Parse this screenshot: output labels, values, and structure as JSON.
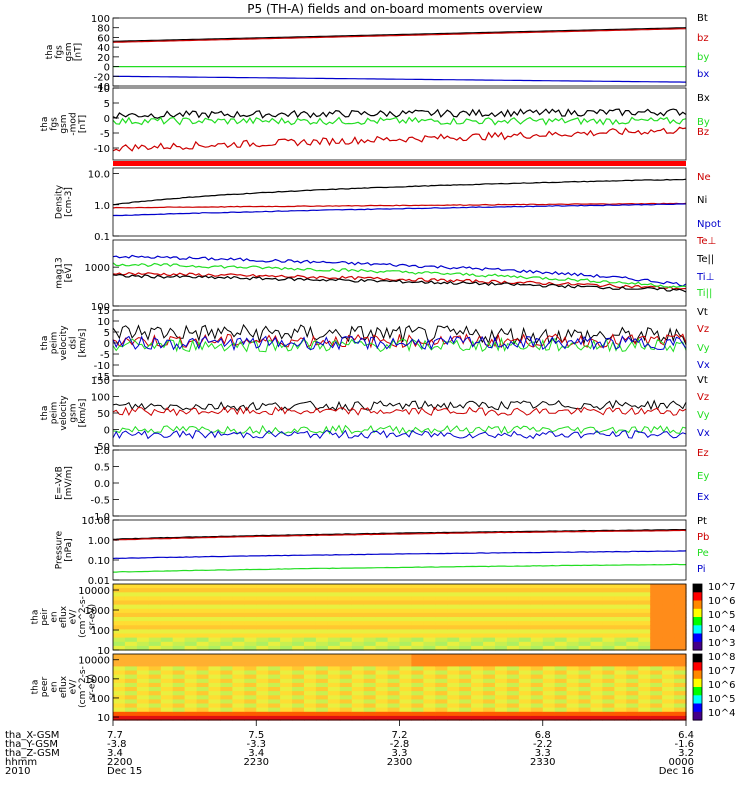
{
  "title": "P5 (TH-A) fields and on-board moments overview",
  "colors": {
    "black": "#000000",
    "red": "#cc0000",
    "green": "#22dd22",
    "blue": "#0000cc"
  },
  "chart_data": [
    {
      "type": "line",
      "ylabel": [
        "tha",
        "fgs",
        "gsm",
        "[nT]"
      ],
      "ylim": [
        -40,
        100
      ],
      "ticks": [
        "100",
        "80",
        "60",
        "40",
        "20",
        "0",
        "-20",
        "-40"
      ],
      "tickvals": [
        100,
        80,
        60,
        40,
        20,
        0,
        -20,
        -40
      ],
      "series": [
        {
          "name": "Bt",
          "color": "black",
          "values": [
            52,
            80
          ]
        },
        {
          "name": "bz",
          "color": "red",
          "values": [
            50,
            78
          ]
        },
        {
          "name": "by",
          "color": "green",
          "values": [
            0,
            0
          ]
        },
        {
          "name": "bx",
          "color": "blue",
          "values": [
            -20,
            -32
          ]
        }
      ]
    },
    {
      "type": "line",
      "ylabel": [
        "tha",
        "fgs",
        "gsm",
        "-mod",
        "[nT]"
      ],
      "ylim": [
        -14,
        10
      ],
      "ticks": [
        "10",
        "5",
        "0",
        "-5",
        "-10"
      ],
      "tickvals": [
        10,
        5,
        0,
        -5,
        -10
      ],
      "series": [
        {
          "name": "Bx",
          "color": "black",
          "values": [
            1,
            2
          ]
        },
        {
          "name": "By",
          "color": "green",
          "values": [
            -1,
            -1
          ]
        },
        {
          "name": "Bz",
          "color": "red",
          "values": [
            -10,
            -4
          ]
        }
      ]
    },
    {
      "type": "line",
      "ylabel": [
        "Density",
        "[cm-3]"
      ],
      "log": true,
      "ylim": [
        0.1,
        15
      ],
      "ticks": [
        "10.0",
        "1.0",
        "0.1"
      ],
      "tickvals": [
        10,
        1,
        0.1
      ],
      "series": [
        {
          "name": "Ne",
          "color": "red",
          "values": [
            0.8,
            1.1
          ]
        },
        {
          "name": "Ni",
          "color": "black",
          "values": [
            1.0,
            6.5
          ]
        },
        {
          "name": "Npot",
          "color": "blue",
          "values": [
            0.45,
            1.05
          ]
        }
      ]
    },
    {
      "type": "line",
      "ylabel": [
        "mag13",
        "[eV]"
      ],
      "log": true,
      "ylim": [
        100,
        5000
      ],
      "ticks": [
        "1000",
        "100"
      ],
      "tickvals": [
        1000,
        100
      ],
      "series": [
        {
          "name": "Te⊥",
          "color": "red",
          "values": [
            700,
            280
          ]
        },
        {
          "name": "Te||",
          "color": "black",
          "values": [
            600,
            250
          ]
        },
        {
          "name": "Ti⊥",
          "color": "blue",
          "values": [
            1900,
            350
          ]
        },
        {
          "name": "Ti||",
          "color": "green",
          "values": [
            1200,
            300
          ]
        }
      ]
    },
    {
      "type": "line",
      "ylabel": [
        "tha",
        "peim",
        "velocity",
        "dsl",
        "[km/s]"
      ],
      "ylim": [
        -15,
        15
      ],
      "ticks": [
        "15",
        "10",
        "5",
        "0",
        "-5",
        "-10",
        "-15"
      ],
      "tickvals": [
        15,
        10,
        5,
        0,
        -5,
        -10,
        -15
      ],
      "series": [
        {
          "name": "Vt",
          "color": "black",
          "values": [
            5,
            3
          ]
        },
        {
          "name": "Vz",
          "color": "red",
          "values": [
            1,
            1
          ]
        },
        {
          "name": "Vy",
          "color": "green",
          "values": [
            -1,
            -1
          ]
        },
        {
          "name": "Vx",
          "color": "blue",
          "values": [
            0,
            0
          ]
        }
      ]
    },
    {
      "type": "line",
      "ylabel": [
        "tha",
        "peim",
        "velocity",
        "gsm",
        "[km/s]"
      ],
      "ylim": [
        -50,
        150
      ],
      "ticks": [
        "150",
        "100",
        "50",
        "0",
        "-50"
      ],
      "tickvals": [
        150,
        100,
        50,
        0,
        -50
      ],
      "series": [
        {
          "name": "Vt",
          "color": "black",
          "values": [
            70,
            75
          ]
        },
        {
          "name": "Vz",
          "color": "red",
          "values": [
            55,
            55
          ]
        },
        {
          "name": "Vy",
          "color": "green",
          "values": [
            0,
            0
          ]
        },
        {
          "name": "Vx",
          "color": "blue",
          "values": [
            -15,
            -15
          ]
        }
      ]
    },
    {
      "type": "line",
      "ylabel": [
        "E=-VxB",
        "[mV/m]"
      ],
      "ylim": [
        -1,
        1
      ],
      "ticks": [
        "1.0",
        "0.5",
        "0.0",
        "-0.5",
        "-1.0"
      ],
      "tickvals": [
        1,
        0.5,
        0,
        -0.5,
        -1
      ],
      "series": [
        {
          "name": "Ez",
          "color": "red",
          "values": []
        },
        {
          "name": "Ey",
          "color": "green",
          "values": []
        },
        {
          "name": "Ex",
          "color": "blue",
          "values": []
        }
      ]
    },
    {
      "type": "line",
      "ylabel": [
        "Pressure",
        "[nPa]"
      ],
      "log": true,
      "ylim": [
        0.01,
        10
      ],
      "ticks": [
        "10.00",
        "1.00",
        "0.10",
        "0.01"
      ],
      "tickvals": [
        10,
        1,
        0.1,
        0.01
      ],
      "series": [
        {
          "name": "Pt",
          "color": "black",
          "values": [
            1.1,
            3.3
          ]
        },
        {
          "name": "Pb",
          "color": "red",
          "values": [
            1.0,
            3.0
          ]
        },
        {
          "name": "Pe",
          "color": "green",
          "values": [
            0.025,
            0.06
          ]
        },
        {
          "name": "Pi",
          "color": "blue",
          "values": [
            0.12,
            0.28
          ]
        }
      ]
    },
    {
      "type": "heatmap",
      "ylabel": [
        "tha",
        "peir",
        "en",
        "eflux",
        "eV/",
        "(cm^2-s-",
        "sr-eV)"
      ],
      "log": true,
      "ylim": [
        10,
        20000
      ],
      "ticks": [
        "10000",
        "1000",
        "100",
        "10"
      ],
      "tickvals": [
        10000,
        1000,
        100,
        10
      ],
      "colorbar": [
        "10^7",
        "10^6",
        "10^5",
        "10^4",
        "10^3"
      ]
    },
    {
      "type": "heatmap",
      "ylabel": [
        "tha",
        "peer",
        "en",
        "eflux",
        "eV/",
        "(cm^2-s-",
        "sr-eV)"
      ],
      "log": true,
      "ylim": [
        7,
        20000
      ],
      "ticks": [
        "10000",
        "1000",
        "100",
        "10"
      ],
      "tickvals": [
        10000,
        1000,
        100,
        10
      ],
      "colorbar": [
        "10^8",
        "10^7",
        "10^6",
        "10^5",
        "10^4"
      ]
    }
  ],
  "xaxis": {
    "row_labels": [
      "tha_X-GSM",
      "tha_Y-GSM",
      "tha_Z-GSM",
      "hhmm",
      "2010"
    ],
    "columns": [
      [
        "7.7",
        "-3.8",
        "3.4",
        "2200",
        "Dec 15"
      ],
      [
        "7.5",
        "-3.3",
        "3.4",
        "2230",
        ""
      ],
      [
        "7.2",
        "-2.8",
        "3.3",
        "2300",
        ""
      ],
      [
        "6.8",
        "-2.2",
        "3.3",
        "2330",
        ""
      ],
      [
        "6.4",
        "-1.6",
        "3.2",
        "0000",
        "Dec 16"
      ]
    ]
  }
}
